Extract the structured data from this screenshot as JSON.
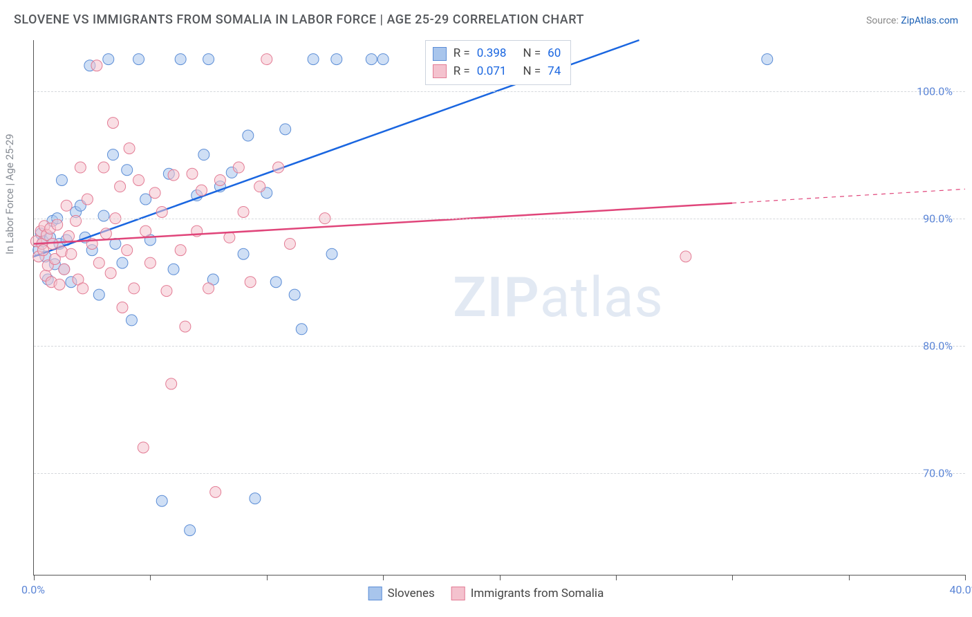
{
  "title": "SLOVENE VS IMMIGRANTS FROM SOMALIA IN LABOR FORCE | AGE 25-29 CORRELATION CHART",
  "source_prefix": "Source: ",
  "source_link": "ZipAtlas.com",
  "ylabel": "In Labor Force | Age 25-29",
  "watermark_bold": "ZIP",
  "watermark_rest": "atlas",
  "chart": {
    "type": "scatter",
    "xlim": [
      0,
      40
    ],
    "ylim": [
      62,
      104
    ],
    "xticks": [
      0,
      5,
      10,
      15,
      20,
      25,
      30,
      35,
      40
    ],
    "xtick_labels": {
      "0": "0.0%",
      "40": "40.0%"
    },
    "yticks": [
      70,
      80,
      90,
      100
    ],
    "ytick_labels": [
      "70.0%",
      "80.0%",
      "90.0%",
      "100.0%"
    ],
    "grid_color": "#d5d8dc",
    "background_color": "#ffffff",
    "marker_radius": 8,
    "marker_opacity": 0.55,
    "line_width": 2.5,
    "series": [
      {
        "name": "Slovenes",
        "color_fill": "#a8c5ec",
        "color_stroke": "#5b8dd6",
        "line_color": "#1a66e0",
        "R": "0.398",
        "N": "60",
        "regression": {
          "x1": 0,
          "y1": 87.0,
          "x2": 26,
          "y2": 104,
          "dashed_ext": false
        },
        "points": [
          [
            0.2,
            87.5
          ],
          [
            0.3,
            88.8
          ],
          [
            0.4,
            88.2
          ],
          [
            0.5,
            87.0
          ],
          [
            0.6,
            85.2
          ],
          [
            0.7,
            88.5
          ],
          [
            0.8,
            89.8
          ],
          [
            0.9,
            86.4
          ],
          [
            1.0,
            90.0
          ],
          [
            1.1,
            88.0
          ],
          [
            1.2,
            93.0
          ],
          [
            1.3,
            86.0
          ],
          [
            1.4,
            88.3
          ],
          [
            1.6,
            85.0
          ],
          [
            1.8,
            90.5
          ],
          [
            2.0,
            91.0
          ],
          [
            2.2,
            88.5
          ],
          [
            2.4,
            102.0
          ],
          [
            2.5,
            87.5
          ],
          [
            2.8,
            84.0
          ],
          [
            3.0,
            90.2
          ],
          [
            3.2,
            102.5
          ],
          [
            3.4,
            95.0
          ],
          [
            3.5,
            88.0
          ],
          [
            3.8,
            86.5
          ],
          [
            4.0,
            93.8
          ],
          [
            4.2,
            82.0
          ],
          [
            4.5,
            102.5
          ],
          [
            4.8,
            91.5
          ],
          [
            5.0,
            88.3
          ],
          [
            5.5,
            67.8
          ],
          [
            5.8,
            93.5
          ],
          [
            6.0,
            86.0
          ],
          [
            6.3,
            102.5
          ],
          [
            6.7,
            65.5
          ],
          [
            7.0,
            91.8
          ],
          [
            7.3,
            95.0
          ],
          [
            7.5,
            102.5
          ],
          [
            7.7,
            85.2
          ],
          [
            8.0,
            92.5
          ],
          [
            8.5,
            93.6
          ],
          [
            9.0,
            87.2
          ],
          [
            9.2,
            96.5
          ],
          [
            9.5,
            68.0
          ],
          [
            10.0,
            92.0
          ],
          [
            10.4,
            85.0
          ],
          [
            10.8,
            97.0
          ],
          [
            11.2,
            84.0
          ],
          [
            11.5,
            81.3
          ],
          [
            12.0,
            102.5
          ],
          [
            12.8,
            87.2
          ],
          [
            13.0,
            102.5
          ],
          [
            14.5,
            102.5
          ],
          [
            15.0,
            102.5
          ],
          [
            31.5,
            102.5
          ]
        ]
      },
      {
        "name": "Immigrants from Somalia",
        "color_fill": "#f4c2ce",
        "color_stroke": "#e37b94",
        "line_color": "#e0457a",
        "R": "0.071",
        "N": "74",
        "regression": {
          "x1": 0,
          "y1": 88.0,
          "x2": 30,
          "y2": 91.2,
          "dashed_ext": true,
          "x3": 40,
          "y3": 92.3
        },
        "points": [
          [
            0.1,
            88.2
          ],
          [
            0.2,
            87.0
          ],
          [
            0.3,
            89.0
          ],
          [
            0.35,
            88.0
          ],
          [
            0.4,
            87.5
          ],
          [
            0.45,
            89.4
          ],
          [
            0.5,
            85.5
          ],
          [
            0.55,
            88.7
          ],
          [
            0.6,
            86.3
          ],
          [
            0.7,
            89.2
          ],
          [
            0.75,
            85.0
          ],
          [
            0.8,
            88.0
          ],
          [
            0.9,
            86.8
          ],
          [
            1.0,
            89.5
          ],
          [
            1.1,
            84.8
          ],
          [
            1.2,
            87.4
          ],
          [
            1.3,
            86.0
          ],
          [
            1.4,
            91.0
          ],
          [
            1.5,
            88.6
          ],
          [
            1.6,
            87.2
          ],
          [
            1.8,
            89.8
          ],
          [
            1.9,
            85.2
          ],
          [
            2.0,
            94.0
          ],
          [
            2.1,
            84.5
          ],
          [
            2.3,
            91.5
          ],
          [
            2.5,
            88.0
          ],
          [
            2.7,
            102.0
          ],
          [
            2.8,
            86.5
          ],
          [
            3.0,
            94.0
          ],
          [
            3.1,
            88.8
          ],
          [
            3.3,
            85.7
          ],
          [
            3.4,
            97.5
          ],
          [
            3.5,
            90.0
          ],
          [
            3.7,
            92.5
          ],
          [
            3.8,
            83.0
          ],
          [
            4.0,
            87.5
          ],
          [
            4.1,
            95.5
          ],
          [
            4.3,
            84.5
          ],
          [
            4.5,
            93.0
          ],
          [
            4.7,
            72.0
          ],
          [
            4.8,
            89.0
          ],
          [
            5.0,
            86.5
          ],
          [
            5.2,
            92.0
          ],
          [
            5.5,
            90.5
          ],
          [
            5.7,
            84.3
          ],
          [
            5.9,
            77.0
          ],
          [
            6.0,
            93.4
          ],
          [
            6.3,
            87.5
          ],
          [
            6.5,
            81.5
          ],
          [
            6.8,
            93.5
          ],
          [
            7.0,
            89.0
          ],
          [
            7.2,
            92.2
          ],
          [
            7.5,
            84.5
          ],
          [
            7.8,
            68.5
          ],
          [
            8.0,
            93.0
          ],
          [
            8.4,
            88.5
          ],
          [
            8.8,
            94.0
          ],
          [
            9.0,
            90.5
          ],
          [
            9.3,
            85.0
          ],
          [
            9.7,
            92.5
          ],
          [
            10.0,
            102.5
          ],
          [
            10.5,
            94.0
          ],
          [
            11.0,
            88.0
          ],
          [
            12.5,
            90.0
          ],
          [
            28.0,
            87.0
          ]
        ]
      }
    ]
  },
  "legend_bottom": [
    {
      "label": "Slovenes",
      "fill": "#a8c5ec",
      "stroke": "#5b8dd6"
    },
    {
      "label": "Immigrants from Somalia",
      "fill": "#f4c2ce",
      "stroke": "#e37b94"
    }
  ]
}
